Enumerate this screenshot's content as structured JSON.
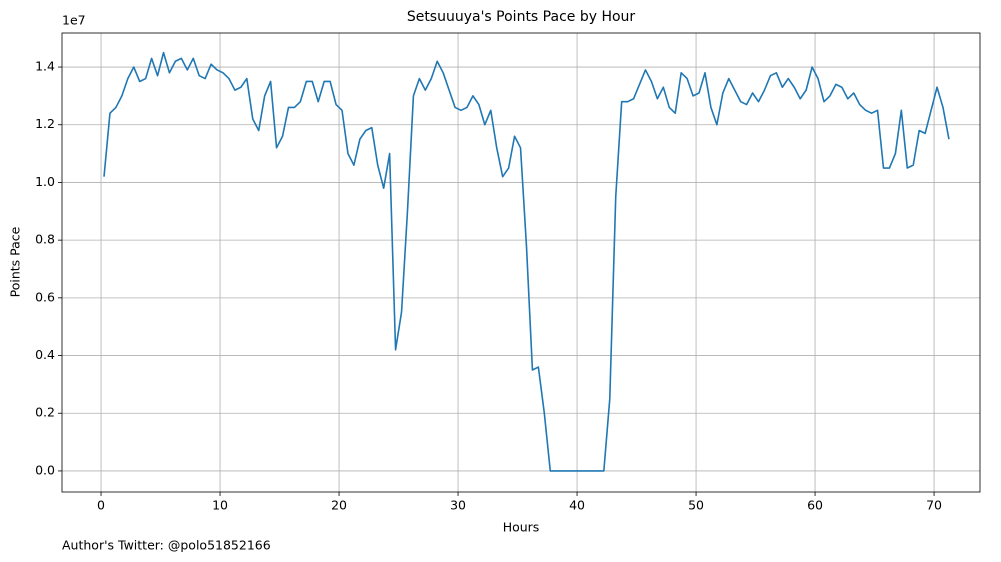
{
  "chart_data": {
    "type": "line",
    "title": "Setsuuuya's Points Pace by Hour",
    "xlabel": "Hours",
    "ylabel": "Points Pace",
    "y_offset_text": "1e7",
    "footer": "Author's Twitter: @polo51852166",
    "grid": true,
    "xlim": [
      -3.28,
      73.86
    ],
    "ylim": [
      -730000,
      15180000
    ],
    "xticks": [
      0,
      10,
      20,
      30,
      40,
      50,
      60,
      70
    ],
    "yticks": [
      {
        "value": 0,
        "label": "0.0"
      },
      {
        "value": 2000000,
        "label": "0.2"
      },
      {
        "value": 4000000,
        "label": "0.4"
      },
      {
        "value": 6000000,
        "label": "0.6"
      },
      {
        "value": 8000000,
        "label": "0.8"
      },
      {
        "value": 10000000,
        "label": "1.0"
      },
      {
        "value": 12000000,
        "label": "1.2"
      },
      {
        "value": 14000000,
        "label": "1.4"
      }
    ],
    "x": [
      0.25,
      0.75,
      1.25,
      1.75,
      2.25,
      2.75,
      3.25,
      3.75,
      4.25,
      4.75,
      5.25,
      5.75,
      6.25,
      6.75,
      7.25,
      7.75,
      8.25,
      8.75,
      9.25,
      9.75,
      10.25,
      10.75,
      11.25,
      11.75,
      12.25,
      12.75,
      13.25,
      13.75,
      14.25,
      14.75,
      15.25,
      15.75,
      16.25,
      16.75,
      17.25,
      17.75,
      18.25,
      18.75,
      19.25,
      19.75,
      20.25,
      20.75,
      21.25,
      21.75,
      22.25,
      22.75,
      23.25,
      23.75,
      24.25,
      24.75,
      25.25,
      25.75,
      26.25,
      26.75,
      27.25,
      27.75,
      28.25,
      28.75,
      29.25,
      29.75,
      30.25,
      30.75,
      31.25,
      31.75,
      32.25,
      32.75,
      33.25,
      33.75,
      34.25,
      34.75,
      35.25,
      35.75,
      36.25,
      36.75,
      37.25,
      37.75,
      38.25,
      38.75,
      39.25,
      39.75,
      40.25,
      40.75,
      41.25,
      41.75,
      42.25,
      42.75,
      43.25,
      43.75,
      44.25,
      44.75,
      45.25,
      45.75,
      46.25,
      46.75,
      47.25,
      47.75,
      48.25,
      48.75,
      49.25,
      49.75,
      50.25,
      50.75,
      51.25,
      51.75,
      52.25,
      52.75,
      53.25,
      53.75,
      54.25,
      54.75,
      55.25,
      55.75,
      56.25,
      56.75,
      57.25,
      57.75,
      58.25,
      58.75,
      59.25,
      59.75,
      60.25,
      60.75,
      61.25,
      61.75,
      62.25,
      62.75,
      63.25,
      63.75,
      64.25,
      64.75,
      65.25,
      65.75,
      66.25,
      66.75,
      67.25,
      67.75,
      68.25,
      68.75,
      69.25,
      69.75,
      70.25,
      70.75,
      71.25
    ],
    "series": [
      {
        "color": "#1f77b4",
        "values": [
          10200000,
          12400000,
          12600000,
          13000000,
          13600000,
          14000000,
          13500000,
          13600000,
          14300000,
          13700000,
          14500000,
          13800000,
          14200000,
          14300000,
          13900000,
          14300000,
          13700000,
          13600000,
          14100000,
          13900000,
          13800000,
          13600000,
          13200000,
          13300000,
          13600000,
          12200000,
          11800000,
          13000000,
          13500000,
          11200000,
          11600000,
          12600000,
          12600000,
          12800000,
          13500000,
          13500000,
          12800000,
          13500000,
          13500000,
          12700000,
          12500000,
          11000000,
          10600000,
          11500000,
          11800000,
          11900000,
          10600000,
          9800000,
          11000000,
          4200000,
          5500000,
          9000000,
          13000000,
          13600000,
          13200000,
          13600000,
          14200000,
          13800000,
          13200000,
          12600000,
          12500000,
          12600000,
          13000000,
          12700000,
          12000000,
          12500000,
          11200000,
          10200000,
          10500000,
          11600000,
          11200000,
          7800000,
          3500000,
          3600000,
          2000000,
          0,
          0,
          0,
          0,
          0,
          0,
          0,
          0,
          0,
          0,
          2500000,
          9500000,
          12800000,
          12800000,
          12900000,
          13400000,
          13900000,
          13500000,
          12900000,
          13300000,
          12600000,
          12400000,
          13800000,
          13600000,
          13000000,
          13100000,
          13800000,
          12600000,
          12000000,
          13100000,
          13600000,
          13200000,
          12800000,
          12700000,
          13100000,
          12800000,
          13200000,
          13700000,
          13800000,
          13300000,
          13600000,
          13300000,
          12900000,
          13200000,
          14000000,
          13600000,
          12800000,
          13000000,
          13400000,
          13300000,
          12900000,
          13100000,
          12700000,
          12500000,
          12400000,
          12500000,
          10500000,
          10500000,
          11000000,
          12500000,
          10500000,
          10600000,
          11800000,
          11700000,
          12500000,
          13300000,
          12600000,
          11500000
        ]
      }
    ]
  }
}
